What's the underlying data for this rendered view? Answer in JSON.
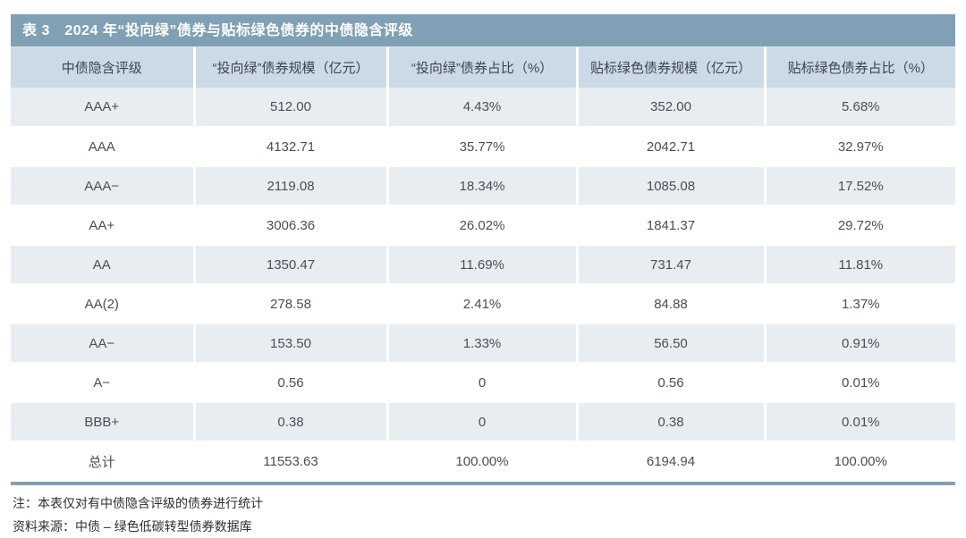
{
  "chart_data": {
    "type": "table",
    "title": "表 3　2024 年“投向绿”债券与贴标绿色债券的中债隐含评级",
    "columns": [
      "中债隐含评级",
      "“投向绿”债券规模（亿元）",
      "“投向绿”债券占比（%）",
      "贴标绿色债券规模（亿元）",
      "贴标绿色债券占比（%）"
    ],
    "rows": [
      [
        "AAA+",
        "512.00",
        "4.43%",
        "352.00",
        "5.68%"
      ],
      [
        "AAA",
        "4132.71",
        "35.77%",
        "2042.71",
        "32.97%"
      ],
      [
        "AAA−",
        "2119.08",
        "18.34%",
        "1085.08",
        "17.52%"
      ],
      [
        "AA+",
        "3006.36",
        "26.02%",
        "1841.37",
        "29.72%"
      ],
      [
        "AA",
        "1350.47",
        "11.69%",
        "731.47",
        "11.81%"
      ],
      [
        "AA(2)",
        "278.58",
        "2.41%",
        "84.88",
        "1.37%"
      ],
      [
        "AA−",
        "153.50",
        "1.33%",
        "56.50",
        "0.91%"
      ],
      [
        "A−",
        "0.56",
        "0",
        "0.56",
        "0.01%"
      ],
      [
        "BBB+",
        "0.38",
        "0",
        "0.38",
        "0.01%"
      ],
      [
        "总计",
        "11553.63",
        "100.00%",
        "6194.94",
        "100.00%"
      ]
    ],
    "notes": [
      "注：本表仅对有中债隐含评级的债券进行统计",
      "资料来源：中债 – 绿色低碳转型债券数据库"
    ]
  },
  "colors": {
    "title_bar": "#7fa0b5",
    "header_bg": "#cbdae6",
    "row_alt_bg": "#e8edf2",
    "row_bg": "#ffffff",
    "bottom_rule": "#7fa0b5",
    "title_text": "#ffffff",
    "cell_text": "#474f56"
  }
}
